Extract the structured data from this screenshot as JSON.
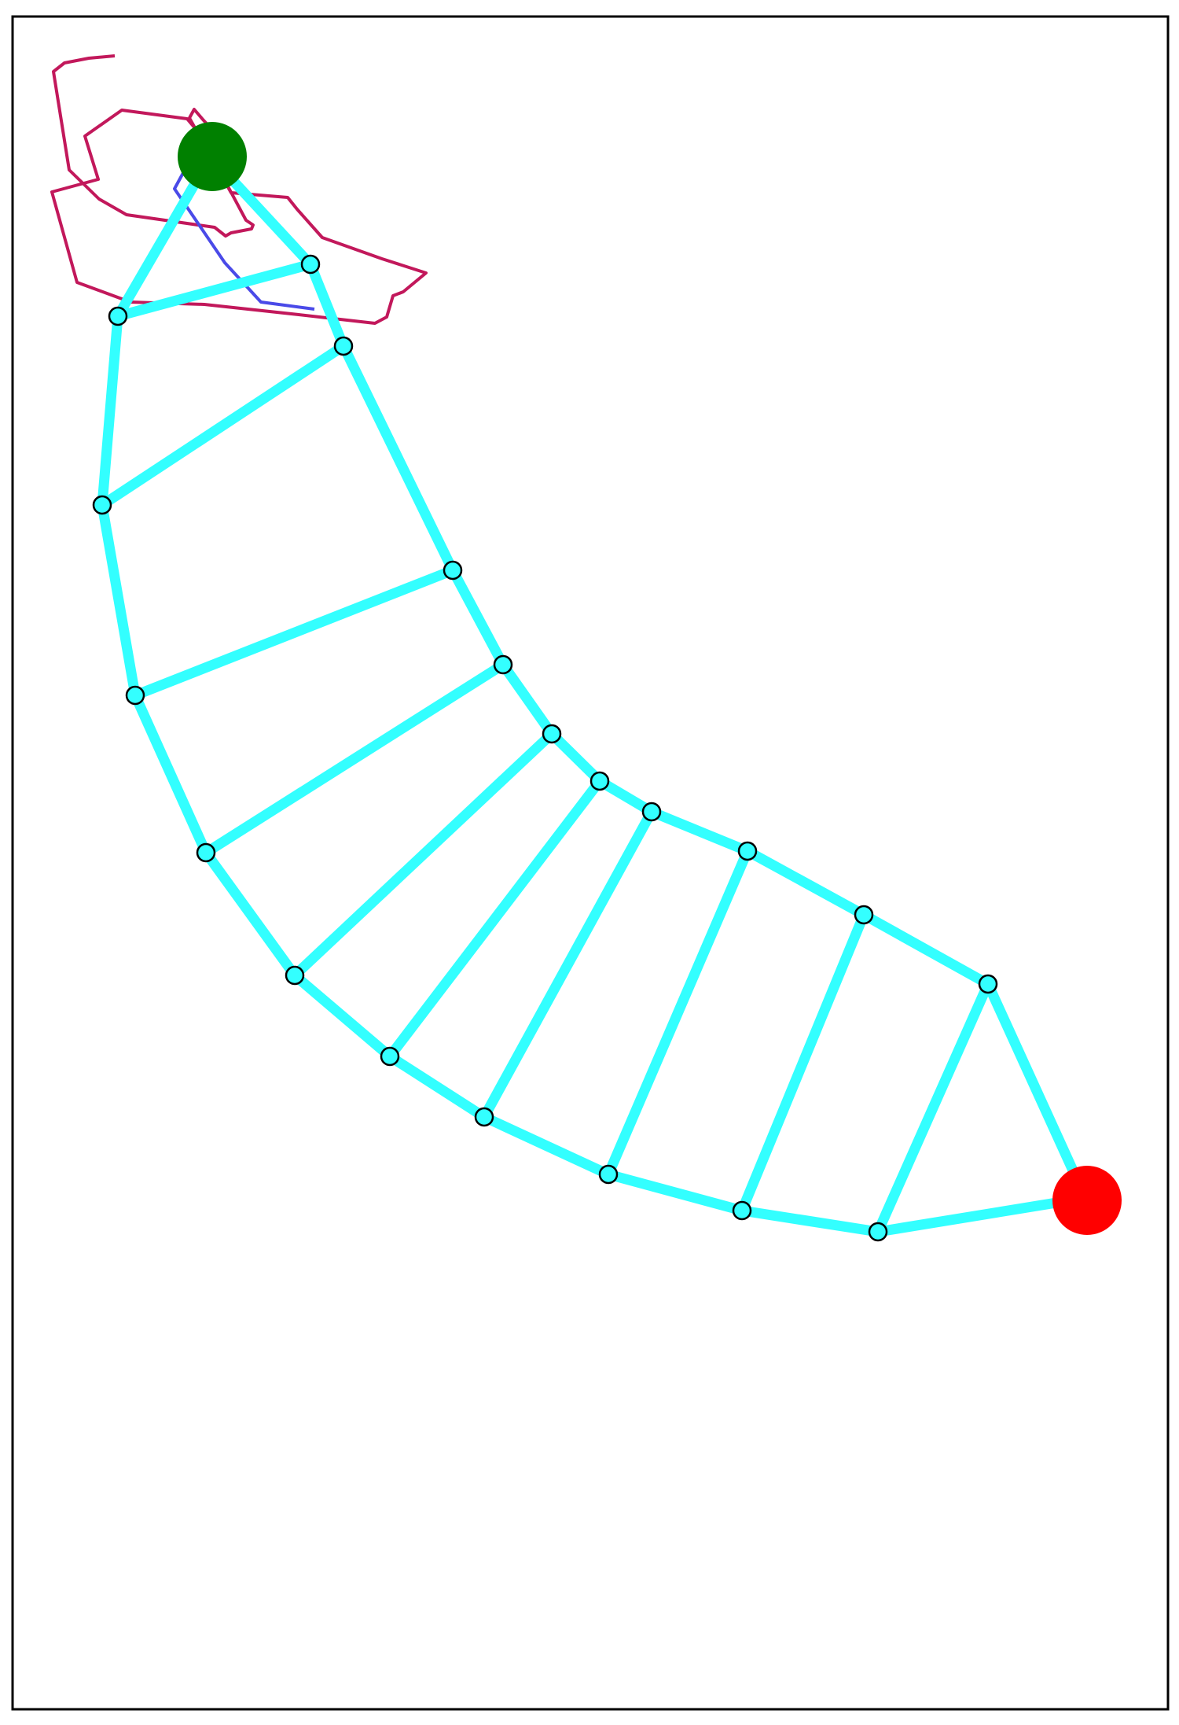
{
  "diagram": {
    "colors": {
      "background": "#ffffff",
      "frame": "#000000",
      "ladder": "#33ffff",
      "node_edge": "#000000",
      "start": "#008000",
      "goal": "#ff0000",
      "path_crimson": "#c2185b",
      "path_blue": "#4a4ae8"
    },
    "markers": [
      {
        "id": "start-marker",
        "role": "start",
        "color": "#008000"
      },
      {
        "id": "goal-marker",
        "role": "goal",
        "color": "#ff0000"
      }
    ]
  }
}
